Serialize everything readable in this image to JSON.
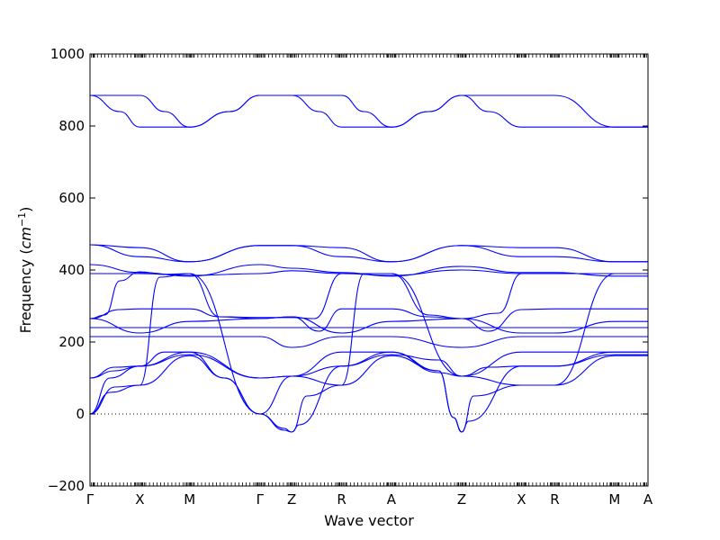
{
  "chart_data": {
    "type": "line",
    "xlabel": "Wave vector",
    "ylabel_prefix": "Frequency (",
    "ylabel_unit_base": "cm",
    "ylabel_unit_exp": "−1",
    "ylabel_suffix": ")",
    "ylim": [
      -200,
      1000
    ],
    "y_ticks": [
      -200,
      0,
      200,
      400,
      600,
      800,
      1000
    ],
    "x_ticks": [
      {
        "label": "Γ",
        "x": 0
      },
      {
        "label": "X",
        "x": 1
      },
      {
        "label": "M",
        "x": 2
      },
      {
        "label": "Γ",
        "x": 3.41
      },
      {
        "label": "Z",
        "x": 4.05
      },
      {
        "label": "R",
        "x": 5.05
      },
      {
        "label": "A",
        "x": 6.05
      },
      {
        "label": "Z",
        "x": 7.46
      },
      {
        "label": "X",
        "x": 8.66
      },
      {
        "label": "R",
        "x": 9.33
      },
      {
        "label": "M",
        "x": 10.53
      },
      {
        "label": "A",
        "x": 11.2
      }
    ],
    "xlim": [
      0,
      11.2
    ],
    "zero_line": true,
    "line_color": "#0000ff",
    "series": [
      {
        "x": [
          0,
          0.9,
          1,
          1.5,
          2,
          2.8,
          3.41,
          4.05,
          5.05,
          5.5,
          6.05,
          6.8,
          7.46,
          8.66,
          9.33,
          10.53,
          11.2
        ],
        "y": [
          885,
          885,
          885,
          840,
          797,
          840,
          885,
          885,
          885,
          840,
          797,
          840,
          885,
          885,
          885,
          797,
          797
        ]
      },
      {
        "x": [
          0,
          0.6,
          1,
          2,
          2.8,
          3.41,
          4.05,
          4.6,
          5.05,
          6.05,
          6.8,
          7.46,
          8.0,
          8.66,
          9.33,
          10.53,
          11.2
        ],
        "y": [
          885,
          840,
          797,
          797,
          840,
          885,
          885,
          840,
          797,
          797,
          840,
          885,
          840,
          797,
          797,
          797,
          797
        ]
      },
      {
        "x": [
          0,
          1,
          2,
          3.41,
          4.05,
          5.05,
          6.05,
          7.46,
          8.66,
          9.33,
          10.53,
          11.2
        ],
        "y": [
          470,
          462,
          423,
          468,
          468,
          462,
          423,
          468,
          462,
          462,
          423,
          423
        ]
      },
      {
        "x": [
          0,
          1,
          2,
          3.41,
          4.05,
          5.05,
          6.05,
          7.46,
          8.66,
          9.33,
          10.53,
          11.2
        ],
        "y": [
          470,
          437,
          423,
          468,
          468,
          437,
          423,
          468,
          437,
          437,
          423,
          423
        ]
      },
      {
        "x": [
          0,
          1,
          2,
          3.41,
          4.05,
          5.05,
          6.05,
          7.46,
          8.66,
          9.33,
          10.53,
          11.2
        ],
        "y": [
          415,
          393,
          383,
          415,
          405,
          393,
          383,
          410,
          393,
          393,
          383,
          383
        ]
      },
      {
        "x": [
          0,
          1,
          2,
          3.41,
          4.05,
          5.05,
          6.05,
          7.46,
          8.66,
          9.33,
          10.53,
          11.2
        ],
        "y": [
          390,
          390,
          385,
          390,
          398,
          390,
          385,
          400,
          390,
          390,
          390,
          390
        ]
      },
      {
        "x": [
          0,
          0.3,
          0.6,
          1,
          1.5,
          2,
          2.6,
          3.41,
          4.05,
          4.5,
          5.05,
          5.5,
          6.05,
          6.8,
          7.46,
          8.2,
          8.66,
          9.33,
          10.53,
          11.2
        ],
        "y": [
          265,
          275,
          370,
          395,
          388,
          390,
          270,
          268,
          268,
          265,
          390,
          390,
          390,
          275,
          265,
          280,
          390,
          390,
          390,
          390
        ]
      },
      {
        "x": [
          0,
          0.6,
          1,
          2,
          2.6,
          3.41,
          4.05,
          4.6,
          5.05,
          6.05,
          6.8,
          7.46,
          8.0,
          8.66,
          9.33,
          10.53,
          11.2
        ],
        "y": [
          265,
          290,
          292,
          292,
          270,
          265,
          270,
          230,
          292,
          292,
          270,
          265,
          230,
          290,
          292,
          292,
          292
        ]
      },
      {
        "x": [
          0,
          1,
          2,
          3.41,
          4.05,
          5.05,
          6.05,
          7.46,
          8.66,
          9.33,
          10.53,
          11.2
        ],
        "y": [
          265,
          225,
          257,
          265,
          270,
          225,
          257,
          265,
          225,
          225,
          257,
          257
        ]
      },
      {
        "x": [
          0,
          1,
          2,
          3.41,
          4.05,
          5.05,
          6.05,
          7.46,
          8.66,
          9.33,
          10.53,
          11.2
        ],
        "y": [
          240,
          240,
          240,
          240,
          240,
          240,
          240,
          240,
          240,
          240,
          240,
          240
        ]
      },
      {
        "x": [
          0,
          1,
          2,
          3.41,
          4.05,
          5.05,
          6.05,
          7.46,
          8.66,
          9.33,
          10.53,
          11.2
        ],
        "y": [
          215,
          215,
          215,
          215,
          185,
          215,
          215,
          185,
          215,
          215,
          215,
          215
        ]
      },
      {
        "x": [
          0,
          0.5,
          1,
          1.5,
          2,
          3.41,
          4.05,
          5.05,
          6.05,
          7.0,
          7.46,
          8.66,
          9.33,
          10.53,
          11.2
        ],
        "y": [
          100,
          120,
          133,
          172,
          172,
          100,
          105,
          172,
          172,
          115,
          105,
          172,
          172,
          172,
          172
        ]
      },
      {
        "x": [
          0,
          0.5,
          1,
          2,
          3.41,
          4.05,
          5.05,
          6.05,
          7.0,
          7.46,
          8.0,
          8.66,
          9.33,
          10.53,
          11.2
        ],
        "y": [
          100,
          130,
          133,
          165,
          100,
          105,
          133,
          165,
          150,
          105,
          130,
          133,
          133,
          165,
          165
        ]
      },
      {
        "x": [
          0,
          0.4,
          1,
          2,
          2.7,
          3.41,
          3.9,
          4.05,
          4.2,
          5.05,
          6.05,
          7.0,
          7.3,
          7.46,
          7.6,
          8.66,
          9.33,
          10.53,
          11.2
        ],
        "y": [
          0,
          100,
          133,
          172,
          100,
          0,
          -45,
          -50,
          -30,
          133,
          172,
          120,
          -10,
          -50,
          -20,
          133,
          133,
          172,
          172
        ]
      },
      {
        "x": [
          0,
          0.4,
          1,
          2,
          2.7,
          3.41,
          3.9,
          4.05,
          4.35,
          5.05,
          6.05,
          7.0,
          7.3,
          7.46,
          7.7,
          8.66,
          9.33,
          10.53,
          11.2
        ],
        "y": [
          0,
          60,
          80,
          162,
          100,
          0,
          -40,
          -50,
          50,
          80,
          162,
          120,
          -10,
          -50,
          50,
          80,
          80,
          162,
          162
        ]
      },
      {
        "x": [
          0,
          0.5,
          1,
          1.4,
          2,
          3.41,
          4.05,
          5.05,
          5.5,
          6.05,
          7.46,
          8.66,
          9.33,
          10.53,
          11.2
        ],
        "y": [
          0,
          75,
          80,
          380,
          390,
          0,
          105,
          80,
          390,
          390,
          105,
          80,
          80,
          390,
          390
        ]
      }
    ]
  }
}
